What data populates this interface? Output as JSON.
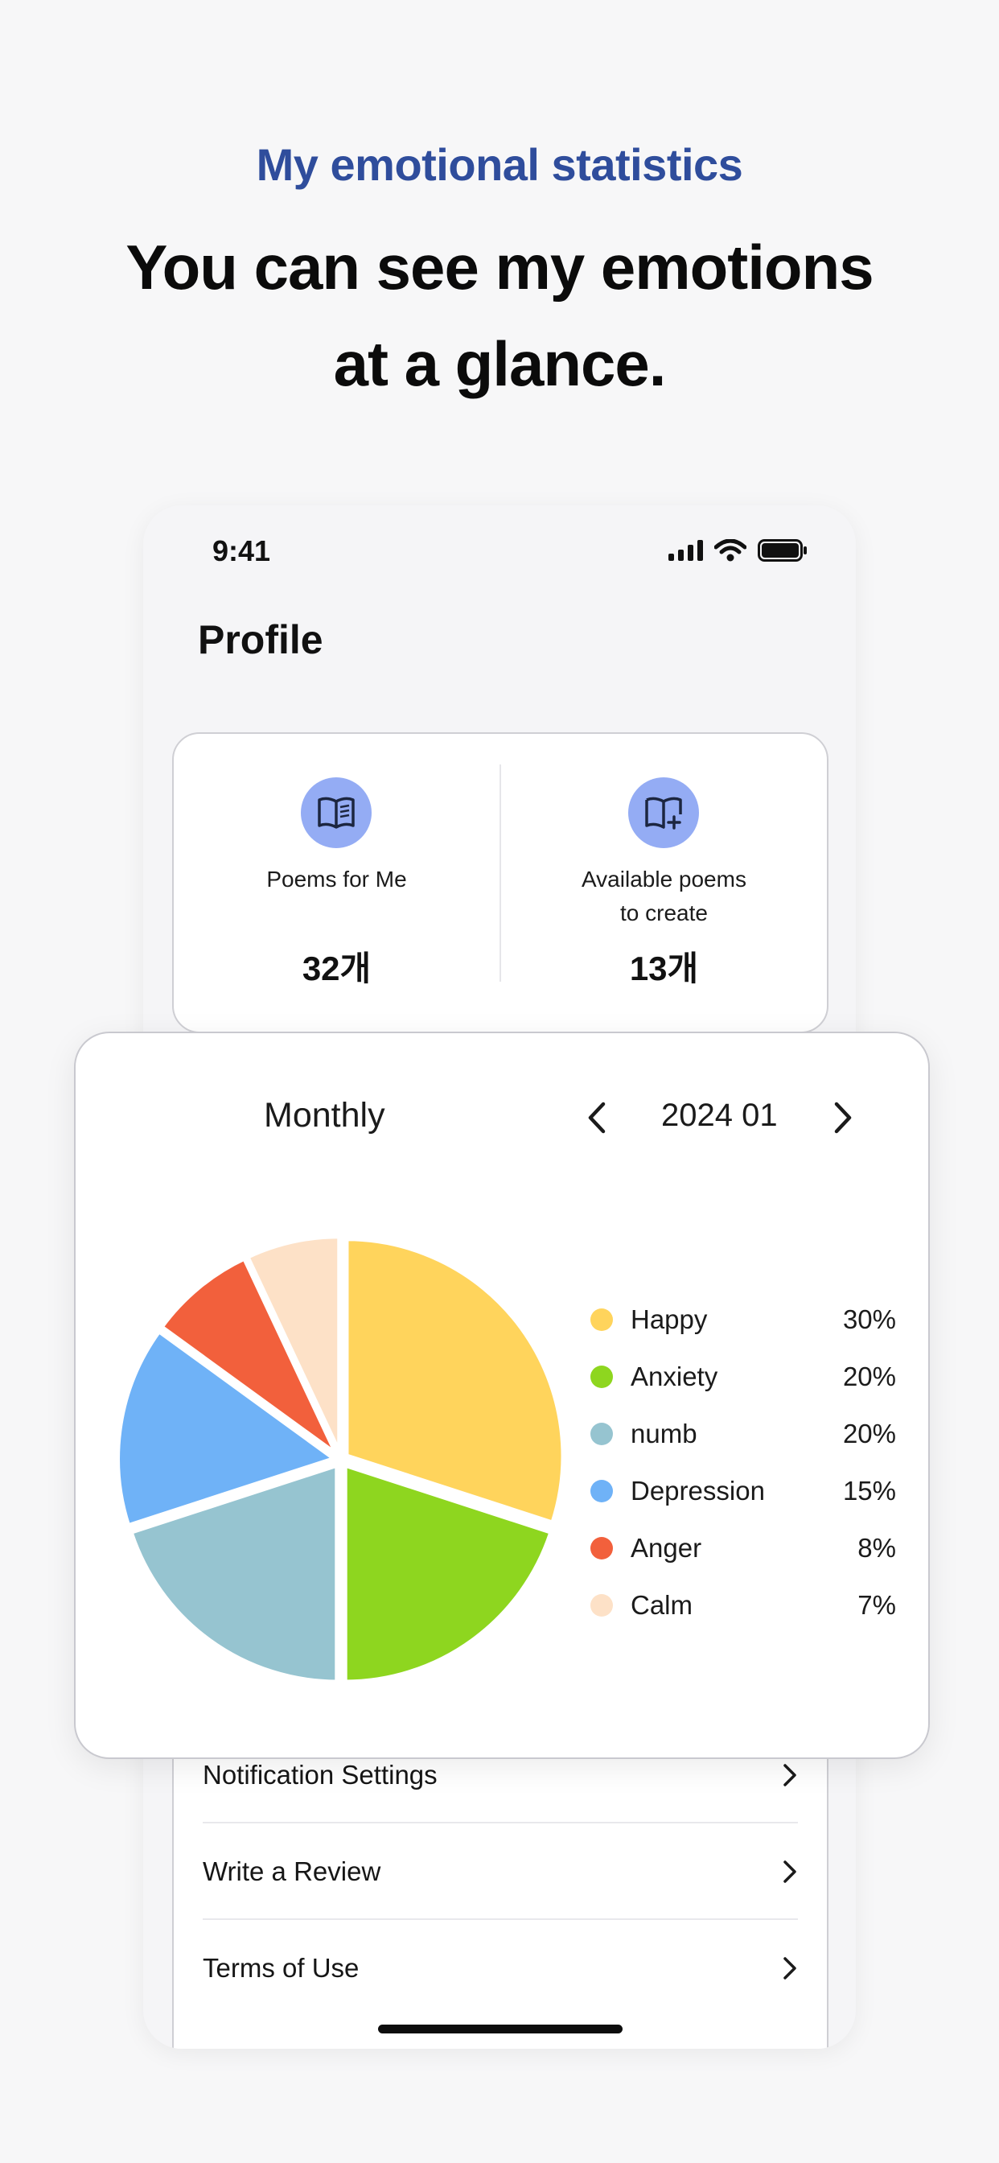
{
  "header": {
    "subtitle": "My emotional statistics",
    "title_line1": "You can see my emotions",
    "title_line2": "at a glance."
  },
  "status_bar": {
    "time": "9:41"
  },
  "profile": {
    "title": "Profile",
    "stats": [
      {
        "label": "Poems for Me",
        "value": "32개",
        "icon": "book-open-icon"
      },
      {
        "label_line1": "Available poems",
        "label_line2": "to create",
        "value": "13개",
        "icon": "book-plus-icon"
      }
    ]
  },
  "chart_panel": {
    "period": "Monthly",
    "month": "2024 01"
  },
  "chart_data": {
    "type": "pie",
    "slices": [
      {
        "label": "Happy",
        "value": 30,
        "pct": "30%",
        "color": "#ffd45c"
      },
      {
        "label": "Anxiety",
        "value": 20,
        "pct": "20%",
        "color": "#8ed61f"
      },
      {
        "label": "numb",
        "value": 20,
        "pct": "20%",
        "color": "#96c4d0"
      },
      {
        "label": "Depression",
        "value": 15,
        "pct": "15%",
        "color": "#6fb2f7"
      },
      {
        "label": "Anger",
        "value": 8,
        "pct": "8%",
        "color": "#f2603c"
      },
      {
        "label": "Calm",
        "value": 7,
        "pct": "7%",
        "color": "#fde1c7"
      }
    ]
  },
  "menu": {
    "items": [
      "Notification Settings",
      "Write a Review",
      "Terms of Use"
    ]
  }
}
